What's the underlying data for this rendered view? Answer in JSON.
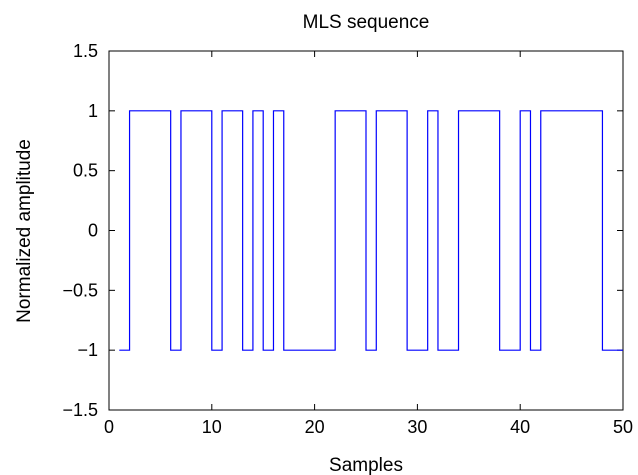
{
  "chart_data": {
    "type": "line",
    "step": true,
    "title": "MLS sequence",
    "xlabel": "Samples",
    "ylabel": "Normalized amplitude",
    "xlim": [
      0,
      50
    ],
    "ylim": [
      -1.5,
      1.5
    ],
    "xticks": [
      0,
      10,
      20,
      30,
      40,
      50
    ],
    "xtick_labels": [
      "0",
      "10",
      "20",
      "30",
      "40",
      "50"
    ],
    "yticks": [
      -1.5,
      -1,
      -0.5,
      0,
      0.5,
      1,
      1.5
    ],
    "ytick_labels": [
      "−1.5",
      "−1",
      "−0.5",
      "0",
      "0.5",
      "1",
      "1.5"
    ],
    "grid": false,
    "series": [
      {
        "color": "#0000ff",
        "x": [
          1,
          2,
          6,
          7,
          10,
          11,
          13,
          14,
          15,
          16,
          17,
          22,
          25,
          26,
          29,
          31,
          32,
          34,
          38,
          40,
          41,
          42,
          48,
          50
        ],
        "values": [
          -1,
          1,
          -1,
          1,
          -1,
          1,
          -1,
          1,
          -1,
          1,
          -1,
          1,
          -1,
          1,
          -1,
          1,
          -1,
          1,
          -1,
          1,
          -1,
          1,
          -1,
          -1
        ]
      }
    ]
  }
}
